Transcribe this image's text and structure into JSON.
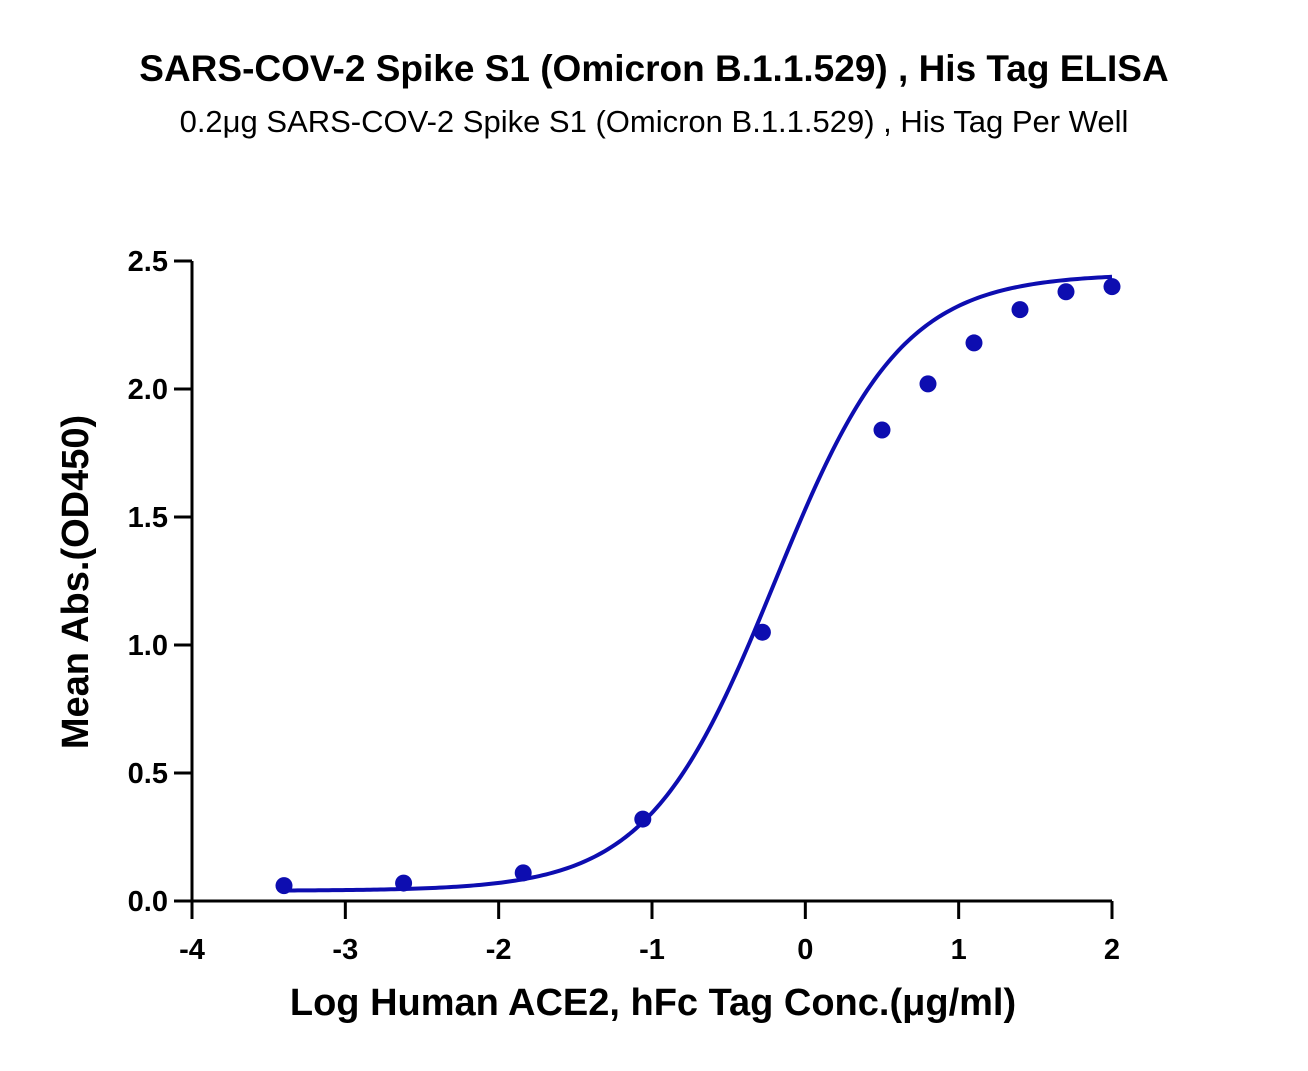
{
  "chart_data": {
    "type": "scatter",
    "title": "SARS-COV-2 Spike S1 (Omicron B.1.1.529) , His Tag ELISA",
    "subtitle": "0.2μg SARS-COV-2 Spike S1 (Omicron B.1.1.529) , His Tag Per Well",
    "xlabel": "Log Human ACE2, hFc Tag Conc.(μg/ml)",
    "ylabel": "Mean Abs.(OD450)",
    "xlim": [
      -4,
      2
    ],
    "ylim": [
      0,
      2.5
    ],
    "x_ticks": [
      -4,
      -3,
      -2,
      -1,
      0,
      1,
      2
    ],
    "x_tick_labels": [
      "-4",
      "-3",
      "-2",
      "-1",
      "0",
      "1",
      "2"
    ],
    "y_ticks": [
      0,
      0.5,
      1,
      1.5,
      2,
      2.5
    ],
    "y_tick_labels": [
      "0.0",
      "0.5",
      "1.0",
      "1.5",
      "2.0",
      "2.5"
    ],
    "grid": false,
    "legend": "none",
    "series": [
      {
        "color": "#0d0db0",
        "points": [
          {
            "x": -3.4,
            "y": 0.06
          },
          {
            "x": -2.62,
            "y": 0.07
          },
          {
            "x": -1.84,
            "y": 0.11
          },
          {
            "x": -1.06,
            "y": 0.32
          },
          {
            "x": -0.28,
            "y": 1.05
          },
          {
            "x": 0.5,
            "y": 1.84
          },
          {
            "x": 0.8,
            "y": 2.02
          },
          {
            "x": 1.1,
            "y": 2.18
          },
          {
            "x": 1.4,
            "y": 2.31
          },
          {
            "x": 1.7,
            "y": 2.38
          },
          {
            "x": 2.0,
            "y": 2.4
          }
        ],
        "fit": {
          "model": "four-parameter logistic",
          "bottom": 0.04,
          "top": 2.45,
          "logEC50": -0.2,
          "hill": 1.05,
          "x_range": [
            -3.4,
            2.0
          ]
        }
      }
    ]
  }
}
